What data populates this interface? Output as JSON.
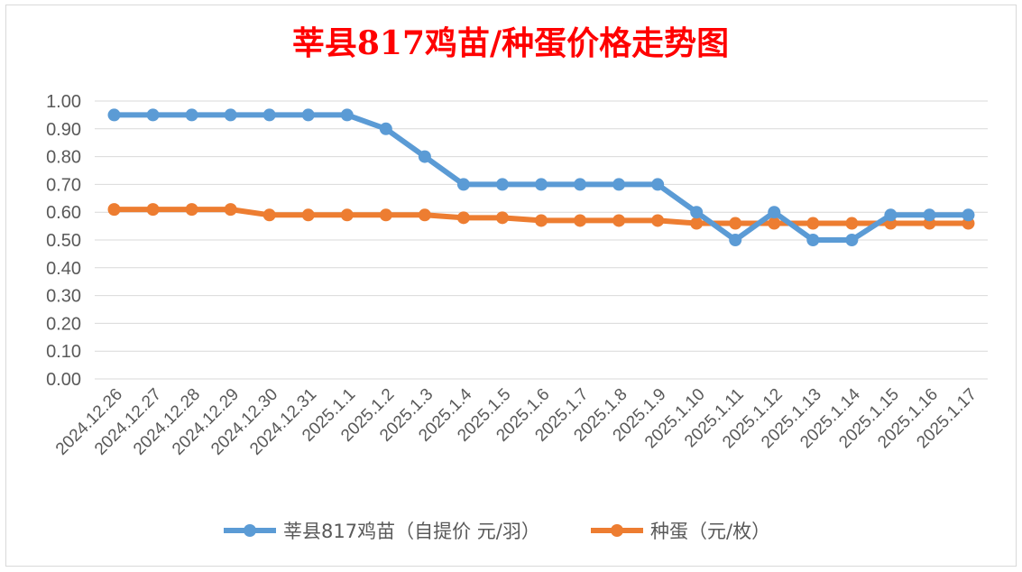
{
  "chart_data": {
    "type": "line",
    "title": "莘县817鸡苗/种蛋价格走势图",
    "title_color": "#FF0000",
    "xlabel": "",
    "ylabel": "",
    "ylim": [
      0,
      1.0
    ],
    "yticks": [
      "0.00",
      "0.10",
      "0.20",
      "0.30",
      "0.40",
      "0.50",
      "0.60",
      "0.70",
      "0.80",
      "0.90",
      "1.00"
    ],
    "grid": true,
    "legend_position": "bottom",
    "categories": [
      "2024.12.26",
      "2024.12.27",
      "2024.12.28",
      "2024.12.29",
      "2024.12.30",
      "2024.12.31",
      "2025.1.1",
      "2025.1.2",
      "2025.1.3",
      "2025.1.4",
      "2025.1.5",
      "2025.1.6",
      "2025.1.7",
      "2025.1.8",
      "2025.1.9",
      "2025.1.10",
      "2025.1.11",
      "2025.1.12",
      "2025.1.13",
      "2025.1.14",
      "2025.1.15",
      "2025.1.16",
      "2025.1.17"
    ],
    "series": [
      {
        "name": "莘县817鸡苗（自提价 元/羽）",
        "color": "#5B9BD5",
        "values": [
          0.95,
          0.95,
          0.95,
          0.95,
          0.95,
          0.95,
          0.95,
          0.9,
          0.8,
          0.7,
          0.7,
          0.7,
          0.7,
          0.7,
          0.7,
          0.6,
          0.5,
          0.6,
          0.5,
          0.5,
          0.59,
          0.59,
          0.59
        ]
      },
      {
        "name": "种蛋（元/枚）",
        "color": "#ED7D31",
        "values": [
          0.61,
          0.61,
          0.61,
          0.61,
          0.59,
          0.59,
          0.59,
          0.59,
          0.59,
          0.58,
          0.58,
          0.57,
          0.57,
          0.57,
          0.57,
          0.56,
          0.56,
          0.56,
          0.56,
          0.56,
          0.56,
          0.56,
          0.56
        ]
      }
    ]
  }
}
